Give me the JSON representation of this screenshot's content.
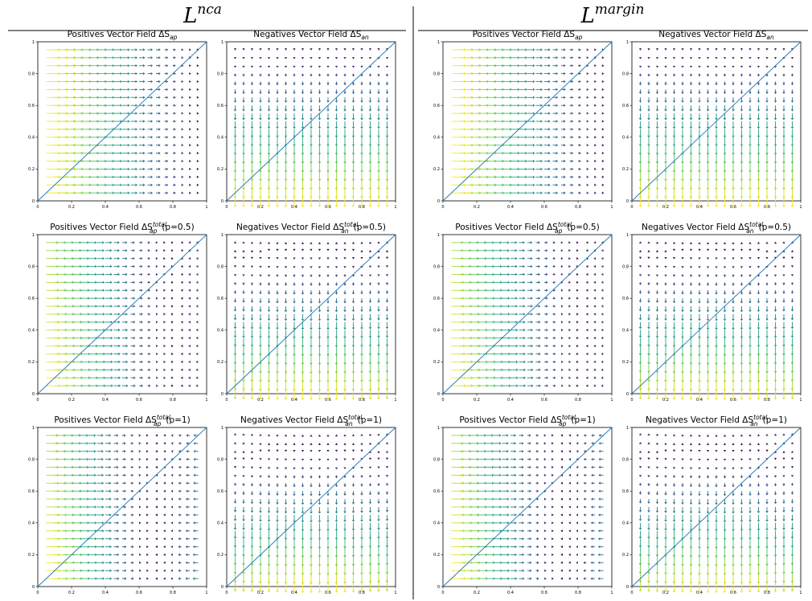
{
  "figure": {
    "columns": [
      {
        "base": "L",
        "sup": "nca"
      },
      {
        "base": "L",
        "sup": "margin"
      }
    ]
  },
  "chart_data": [
    {
      "type": "quiver",
      "column": "nca",
      "field": "positive",
      "p": 0,
      "title": {
        "prefix": "Positives Vector Field ΔS",
        "sub": "ap",
        "sup": "",
        "suffix": ""
      },
      "xlim": [
        0,
        1
      ],
      "ylim": [
        0,
        1
      ],
      "xticks": [
        "0",
        "0.2",
        "0.4",
        "0.6",
        "0.8",
        "1"
      ],
      "yticks": [
        "0",
        "0.2",
        "0.4",
        "0.6",
        "0.8",
        "1"
      ],
      "grid": "0.05 spacing, 19×19 arrows",
      "diagonal": "y = x",
      "colormap": "viridis",
      "arrow_direction": "+x",
      "magnitude": "decreasing as x increases"
    },
    {
      "type": "quiver",
      "column": "nca",
      "field": "negative",
      "p": 0,
      "title": {
        "prefix": "Negatives Vector Field ΔS",
        "sub": "an",
        "sup": "",
        "suffix": ""
      },
      "xlim": [
        0,
        1
      ],
      "ylim": [
        0,
        1
      ],
      "xticks": [
        "0",
        "0.2",
        "0.4",
        "0.6",
        "0.8",
        "1"
      ],
      "yticks": [
        "0",
        "0.2",
        "0.4",
        "0.6",
        "0.8",
        "1"
      ],
      "grid": "0.05 spacing, 19×19 arrows",
      "diagonal": "y = x",
      "colormap": "viridis",
      "arrow_direction": "-y",
      "magnitude": "decreasing as y increases"
    },
    {
      "type": "quiver",
      "column": "margin",
      "field": "positive",
      "p": 0,
      "title": {
        "prefix": "Positives Vector Field ΔS",
        "sub": "ap",
        "sup": "",
        "suffix": ""
      },
      "xlim": [
        0,
        1
      ],
      "ylim": [
        0,
        1
      ],
      "xticks": [
        "0",
        "0.2",
        "0.4",
        "0.6",
        "0.8",
        "1"
      ],
      "yticks": [
        "0",
        "0.2",
        "0.4",
        "0.6",
        "0.8",
        "1"
      ],
      "grid": "0.05 spacing, 19×19 arrows",
      "diagonal": "y = x",
      "colormap": "viridis",
      "arrow_direction": "+x",
      "magnitude": "decreasing as x increases"
    },
    {
      "type": "quiver",
      "column": "margin",
      "field": "negative",
      "p": 0,
      "title": {
        "prefix": "Negatives Vector Field ΔS",
        "sub": "an",
        "sup": "",
        "suffix": ""
      },
      "xlim": [
        0,
        1
      ],
      "ylim": [
        0,
        1
      ],
      "xticks": [
        "0",
        "0.2",
        "0.4",
        "0.6",
        "0.8",
        "1"
      ],
      "yticks": [
        "0",
        "0.2",
        "0.4",
        "0.6",
        "0.8",
        "1"
      ],
      "grid": "0.05 spacing, 19×19 arrows",
      "diagonal": "y = x",
      "colormap": "viridis",
      "arrow_direction": "-y",
      "magnitude": "decreasing as y increases"
    },
    {
      "type": "quiver",
      "column": "nca",
      "field": "positive",
      "p": 0.5,
      "title": {
        "prefix": "Positives Vector Field ΔS",
        "sub": "ap",
        "sup": "total",
        "suffix": "(p=0.5)"
      },
      "xlim": [
        0,
        1
      ],
      "ylim": [
        0,
        1
      ],
      "xticks": [
        "0",
        "0.2",
        "0.4",
        "0.6",
        "0.8",
        "1"
      ],
      "yticks": [
        "0",
        "0.2",
        "0.4",
        "0.6",
        "0.8",
        "1"
      ],
      "grid": "0.05 spacing, 19×19 arrows",
      "diagonal": "y = x",
      "colormap": "viridis",
      "arrow_direction": "+x, reversing to -x near x=1",
      "magnitude": "decreasing toward x≈0.8"
    },
    {
      "type": "quiver",
      "column": "nca",
      "field": "negative",
      "p": 0.5,
      "title": {
        "prefix": "Negatives Vector Field ΔS",
        "sub": "an",
        "sup": "total",
        "suffix": "(p=0.5)"
      },
      "xlim": [
        0,
        1
      ],
      "ylim": [
        0,
        1
      ],
      "xticks": [
        "0",
        "0.2",
        "0.4",
        "0.6",
        "0.8",
        "1"
      ],
      "yticks": [
        "0",
        "0.2",
        "0.4",
        "0.6",
        "0.8",
        "1"
      ],
      "grid": "0.05 spacing, 19×19 arrows",
      "diagonal": "y = x",
      "colormap": "viridis",
      "arrow_direction": "-y, reversing to +y near y=1",
      "magnitude": "decreasing toward y≈0.85"
    },
    {
      "type": "quiver",
      "column": "margin",
      "field": "positive",
      "p": 0.5,
      "title": {
        "prefix": "Positives Vector Field ΔS",
        "sub": "ap",
        "sup": "total",
        "suffix": "(p=0.5)"
      },
      "xlim": [
        0,
        1
      ],
      "ylim": [
        0,
        1
      ],
      "xticks": [
        "0",
        "0.2",
        "0.4",
        "0.6",
        "0.8",
        "1"
      ],
      "yticks": [
        "0",
        "0.2",
        "0.4",
        "0.6",
        "0.8",
        "1"
      ],
      "grid": "0.05 spacing, 19×19 arrows",
      "diagonal": "y = x",
      "colormap": "viridis",
      "arrow_direction": "+x, reversing to -x near x=1",
      "magnitude": "decreasing toward x≈0.8"
    },
    {
      "type": "quiver",
      "column": "margin",
      "field": "negative",
      "p": 0.5,
      "title": {
        "prefix": "Negatives Vector Field ΔS",
        "sub": "an",
        "sup": "total",
        "suffix": "(p=0.5)"
      },
      "xlim": [
        0,
        1
      ],
      "ylim": [
        0,
        1
      ],
      "xticks": [
        "0",
        "0.2",
        "0.4",
        "0.6",
        "0.8",
        "1"
      ],
      "yticks": [
        "0",
        "0.2",
        "0.4",
        "0.6",
        "0.8",
        "1"
      ],
      "grid": "0.05 spacing, 19×19 arrows",
      "diagonal": "y = x",
      "colormap": "viridis",
      "arrow_direction": "-y, reversing to +y near y=1",
      "magnitude": "decreasing toward y≈0.85"
    },
    {
      "type": "quiver",
      "column": "nca",
      "field": "positive",
      "p": 1,
      "title": {
        "prefix": "Positives Vector Field ΔS",
        "sub": "ap",
        "sup": "total",
        "suffix": "(p=1)"
      },
      "xlim": [
        0,
        1
      ],
      "ylim": [
        0,
        1
      ],
      "xticks": [
        "0",
        "0.2",
        "0.4",
        "0.6",
        "0.8",
        "1"
      ],
      "yticks": [
        "0",
        "0.2",
        "0.4",
        "0.6",
        "0.8",
        "1"
      ],
      "grid": "0.05 spacing, 19×19 arrows",
      "diagonal": "y = x",
      "colormap": "viridis",
      "arrow_direction": "+x, reversing to -x for x>0.7",
      "magnitude": "decreasing toward x≈0.7"
    },
    {
      "type": "quiver",
      "column": "nca",
      "field": "negative",
      "p": 1,
      "title": {
        "prefix": "Negatives Vector Field ΔS",
        "sub": "an",
        "sup": "total",
        "suffix": "(p=1)"
      },
      "xlim": [
        0,
        1
      ],
      "ylim": [
        0,
        1
      ],
      "xticks": [
        "0",
        "0.2",
        "0.4",
        "0.6",
        "0.8",
        "1"
      ],
      "yticks": [
        "0",
        "0.2",
        "0.4",
        "0.6",
        "0.8",
        "1"
      ],
      "grid": "0.05 spacing, 19×19 arrows",
      "diagonal": "y = x",
      "colormap": "viridis",
      "arrow_direction": "-y, reversing to +y near y=1",
      "magnitude": "decreasing toward y≈0.8"
    },
    {
      "type": "quiver",
      "column": "margin",
      "field": "positive",
      "p": 1,
      "title": {
        "prefix": "Positives Vector Field ΔS",
        "sub": "ap",
        "sup": "total",
        "suffix": "(p=1)"
      },
      "xlim": [
        0,
        1
      ],
      "ylim": [
        0,
        1
      ],
      "xticks": [
        "0",
        "0.2",
        "0.4",
        "0.6",
        "0.8",
        "1"
      ],
      "yticks": [
        "0",
        "0.2",
        "0.4",
        "0.6",
        "0.8",
        "1"
      ],
      "grid": "0.05 spacing, 19×19 arrows",
      "diagonal": "y = x",
      "colormap": "viridis",
      "arrow_direction": "+x, reversing to -x for x>0.7",
      "magnitude": "decreasing toward x≈0.7"
    },
    {
      "type": "quiver",
      "column": "margin",
      "field": "negative",
      "p": 1,
      "title": {
        "prefix": "Negatives Vector Field ΔS",
        "sub": "an",
        "sup": "total",
        "suffix": "(p=1)"
      },
      "xlim": [
        0,
        1
      ],
      "ylim": [
        0,
        1
      ],
      "xticks": [
        "0",
        "0.2",
        "0.4",
        "0.6",
        "0.8",
        "1"
      ],
      "yticks": [
        "0",
        "0.2",
        "0.4",
        "0.6",
        "0.8",
        "1"
      ],
      "grid": "0.05 spacing, 19×19 arrows",
      "diagonal": "y = x",
      "colormap": "viridis",
      "arrow_direction": "-y, reversing to +y near y=1",
      "magnitude": "decreasing toward y≈0.8"
    }
  ]
}
